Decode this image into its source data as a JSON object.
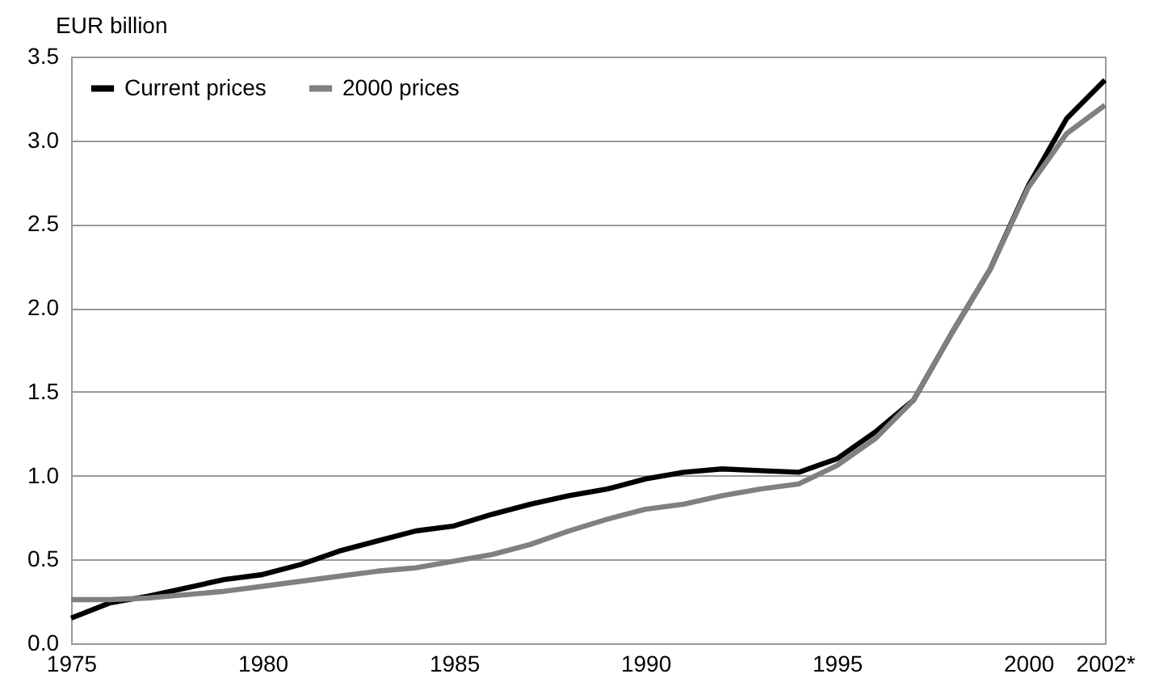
{
  "chart_data": {
    "type": "line",
    "ylabel": "EUR billion",
    "x": [
      1975,
      1976,
      1977,
      1978,
      1979,
      1980,
      1981,
      1982,
      1983,
      1984,
      1985,
      1986,
      1987,
      1988,
      1989,
      1990,
      1991,
      1992,
      1993,
      1994,
      1995,
      1996,
      1997,
      1998,
      1999,
      2000,
      2001,
      2002
    ],
    "series": [
      {
        "name": "Current prices",
        "color": "#000000",
        "values": [
          0.15,
          0.24,
          0.28,
          0.33,
          0.38,
          0.41,
          0.47,
          0.55,
          0.61,
          0.67,
          0.7,
          0.77,
          0.83,
          0.88,
          0.92,
          0.98,
          1.02,
          1.04,
          1.03,
          1.02,
          1.1,
          1.26,
          1.45,
          1.85,
          2.23,
          2.73,
          3.13,
          3.36
        ]
      },
      {
        "name": "2000 prices",
        "color": "#808080",
        "values": [
          0.26,
          0.26,
          0.27,
          0.29,
          0.31,
          0.34,
          0.37,
          0.4,
          0.43,
          0.45,
          0.49,
          0.53,
          0.59,
          0.67,
          0.74,
          0.8,
          0.83,
          0.88,
          0.92,
          0.95,
          1.06,
          1.22,
          1.45,
          1.85,
          2.23,
          2.72,
          3.04,
          3.21
        ]
      }
    ],
    "xlim": [
      1975,
      2002
    ],
    "xticks": [
      1975,
      1980,
      1985,
      1990,
      1995,
      2000,
      {
        "value": 2002,
        "label": "2002*"
      }
    ],
    "ylim": [
      0,
      3.5
    ],
    "yticks": [
      {
        "value": 0,
        "label": "0.0"
      },
      0.5,
      {
        "value": 1,
        "label": "1.0"
      },
      1.5,
      {
        "value": 2,
        "label": "2.0"
      },
      2.5,
      {
        "value": 3,
        "label": "3.0"
      },
      3.5
    ],
    "grid": "y",
    "legend": "top left",
    "line_style": "solid",
    "marker": "none"
  }
}
